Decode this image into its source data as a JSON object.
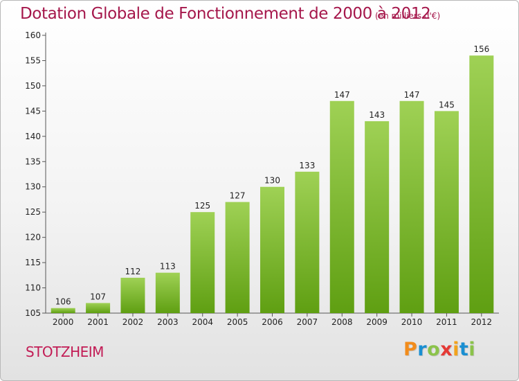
{
  "header": {
    "title": "Dotation Globale de Fonctionnement de 2000 à 2012",
    "subtitle": "(en milliers d'€)"
  },
  "footer": {
    "commune": "STOTZHEIM",
    "logo": [
      "P",
      "r",
      "o",
      "x",
      "i",
      "t",
      "i"
    ]
  },
  "colors": {
    "title": "#a5174b",
    "commune": "#c21c55",
    "bar_top": "#9fd155",
    "bar_bottom": "#5f9f12",
    "logo": [
      "#f28c1c",
      "#1a8fd2",
      "#8bc34a",
      "#e53935",
      "#f2a21c",
      "#1a8fd2",
      "#8bc34a"
    ]
  },
  "chart_data": {
    "type": "bar",
    "title": "Dotation Globale de Fonctionnement de 2000 à 2012",
    "subtitle": "(en milliers d'€)",
    "xlabel": "",
    "ylabel": "",
    "categories": [
      "2000",
      "2001",
      "2002",
      "2003",
      "2004",
      "2005",
      "2006",
      "2007",
      "2008",
      "2009",
      "2010",
      "2011",
      "2012"
    ],
    "values": [
      106,
      107,
      112,
      113,
      125,
      127,
      130,
      133,
      147,
      143,
      147,
      145,
      156
    ],
    "ylim": [
      105,
      160
    ],
    "yticks": [
      105,
      110,
      115,
      120,
      125,
      130,
      135,
      140,
      145,
      150,
      155,
      160
    ],
    "grid": false,
    "legend": "none"
  }
}
